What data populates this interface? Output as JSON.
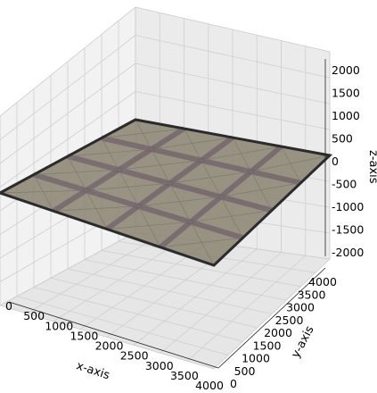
{
  "chart_data": {
    "type": "surface3d",
    "title": "",
    "xlabel": "x-axis",
    "ylabel": "y-axis",
    "zlabel": "z-axis",
    "xlim": [
      0,
      4000
    ],
    "ylim": [
      0,
      4000
    ],
    "zlim": [
      -2000,
      2000
    ],
    "x_ticks": [
      "0",
      "500",
      "1000",
      "1500",
      "2000",
      "2500",
      "3000",
      "3500",
      "4000"
    ],
    "y_ticks": [
      "0",
      "500",
      "1000",
      "1500",
      "2000",
      "2500",
      "3000",
      "3500",
      "4000"
    ],
    "z_ticks": [
      "2000",
      "1500",
      "1000",
      "500",
      "0",
      "-500",
      "-1000",
      "-1500",
      "-2000"
    ],
    "grid": true,
    "surface": {
      "description_values": "flat plate at z = 0 spanning x 0–4000, y 0–4000, divided into a 4x4 panel grid with diagonal bracing",
      "z": 0,
      "x_extent": [
        0,
        4000
      ],
      "y_extent": [
        0,
        4000
      ],
      "panels": 4,
      "fill_color": "#8a8370",
      "edge_color": "#2b2b2b",
      "beam_color": "#6e5e68"
    }
  }
}
